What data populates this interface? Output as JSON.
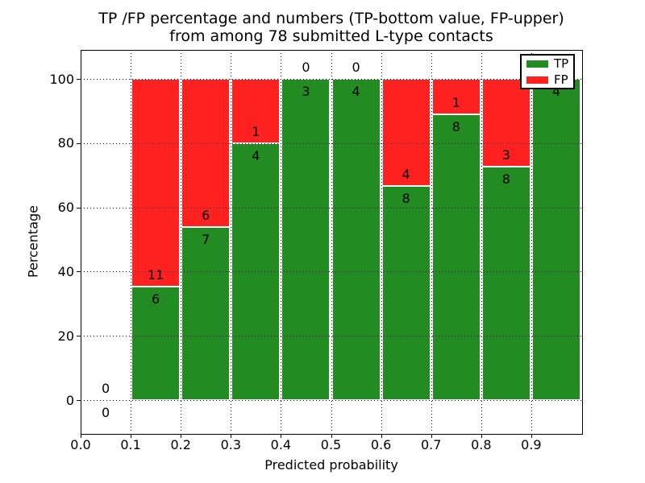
{
  "figure": {
    "title_line1": "TP /FP percentage and numbers (TP-bottom value, FP-upper)",
    "title_line2": "from among 78 submitted L-type contacts"
  },
  "chart_data": {
    "type": "bar",
    "stacked": true,
    "title": "TP /FP percentage and numbers (TP-bottom value, FP-upper) from among 78 submitted L-type contacts",
    "xlabel": "Predicted probability",
    "ylabel": "Percentage",
    "xlim": [
      0.0,
      1.0
    ],
    "ylim": [
      -10,
      109
    ],
    "grid": "dotted black, drawn above bars",
    "x_tick_values": [
      0.0,
      0.1,
      0.2,
      0.3,
      0.4,
      0.5,
      0.6,
      0.7,
      0.8,
      0.9
    ],
    "x_tick_labels": [
      "0.0",
      "0.1",
      "0.2",
      "0.3",
      "0.4",
      "0.5",
      "0.6",
      "0.7",
      "0.8",
      "0.9"
    ],
    "y_tick_values": [
      0,
      20,
      40,
      60,
      80,
      100
    ],
    "y_tick_labels": [
      "0",
      "20",
      "40",
      "60",
      "80",
      "100"
    ],
    "colors": {
      "tp": "#228B22",
      "fp": "#FF2020"
    },
    "legend": {
      "position": "upper right",
      "entries": [
        {
          "label": "TP",
          "color": "#228B22"
        },
        {
          "label": "FP",
          "color": "#FF2020"
        }
      ]
    },
    "bins": [
      {
        "range": [
          0.0,
          0.1
        ],
        "tp_count": 0,
        "fp_count": 0,
        "tp_pct": 0,
        "has_bar": false
      },
      {
        "range": [
          0.1,
          0.2
        ],
        "tp_count": 6,
        "fp_count": 11,
        "tp_pct": 35.29,
        "has_bar": true
      },
      {
        "range": [
          0.2,
          0.3
        ],
        "tp_count": 7,
        "fp_count": 6,
        "tp_pct": 53.85,
        "has_bar": true
      },
      {
        "range": [
          0.3,
          0.4
        ],
        "tp_count": 4,
        "fp_count": 1,
        "tp_pct": 80.0,
        "has_bar": true
      },
      {
        "range": [
          0.4,
          0.5
        ],
        "tp_count": 3,
        "fp_count": 0,
        "tp_pct": 100.0,
        "has_bar": true
      },
      {
        "range": [
          0.5,
          0.6
        ],
        "tp_count": 4,
        "fp_count": 0,
        "tp_pct": 100.0,
        "has_bar": true
      },
      {
        "range": [
          0.6,
          0.7
        ],
        "tp_count": 8,
        "fp_count": 4,
        "tp_pct": 66.67,
        "has_bar": true
      },
      {
        "range": [
          0.7,
          0.8
        ],
        "tp_count": 8,
        "fp_count": 1,
        "tp_pct": 88.89,
        "has_bar": true
      },
      {
        "range": [
          0.8,
          0.9
        ],
        "tp_count": 8,
        "fp_count": 3,
        "tp_pct": 72.73,
        "has_bar": true
      },
      {
        "range": [
          0.9,
          1.0
        ],
        "tp_count": 4,
        "fp_count": 0,
        "tp_pct": 100.0,
        "has_bar": true
      }
    ]
  }
}
